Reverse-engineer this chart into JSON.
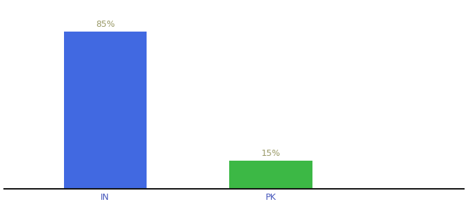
{
  "categories": [
    "IN",
    "PK"
  ],
  "values": [
    85,
    15
  ],
  "bar_colors": [
    "#4169E1",
    "#3CB845"
  ],
  "label_texts": [
    "85%",
    "15%"
  ],
  "label_color": "#999966",
  "background_color": "#ffffff",
  "bar_width": 0.18,
  "ylim": [
    0,
    100
  ],
  "xlim": [
    0.0,
    1.0
  ],
  "x_positions": [
    0.22,
    0.58
  ],
  "tick_label_color": "#4455bb",
  "axis_line_color": "#111111",
  "label_fontsize": 9,
  "tick_fontsize": 9
}
